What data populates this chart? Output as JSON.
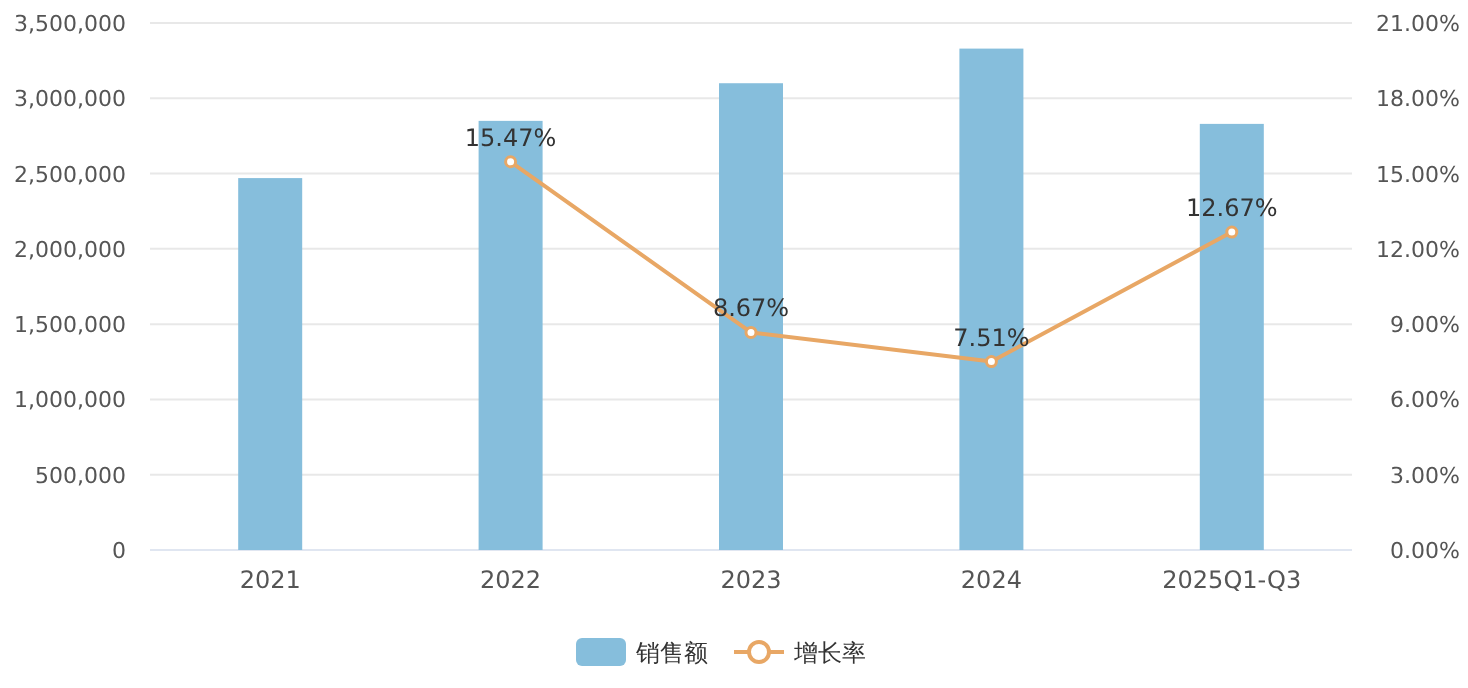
{
  "chart_data": {
    "type": "bar",
    "categories": [
      "2021",
      "2022",
      "2023",
      "2024",
      "2025Q1-Q3"
    ],
    "series": [
      {
        "name": "销售额",
        "color": "#86bedc",
        "values": [
          2470000,
          2850000,
          3100000,
          3330000,
          2830000
        ]
      },
      {
        "name": "增长率",
        "type": "line",
        "axis": "y2",
        "color": "#e8a765",
        "marker": "circle",
        "values": [
          null,
          15.47,
          8.67,
          7.51,
          12.67
        ],
        "value_labels": [
          null,
          "15.47%",
          "8.67%",
          "7.51%",
          "12.67%"
        ]
      }
    ],
    "ylim": [
      0,
      3500000
    ],
    "yticks": [
      {
        "value": 0,
        "label": "0"
      },
      {
        "value": 500000,
        "label": "500,000"
      },
      {
        "value": 1000000,
        "label": "1,000,000"
      },
      {
        "value": 1500000,
        "label": "1,500,000"
      },
      {
        "value": 2000000,
        "label": "2,000,000"
      },
      {
        "value": 2500000,
        "label": "2,500,000"
      },
      {
        "value": 3000000,
        "label": "3,000,000"
      },
      {
        "value": 3500000,
        "label": "3,500,000"
      }
    ],
    "y2lim": [
      0,
      21
    ],
    "y2ticks": [
      {
        "value": 0,
        "label": "0.00%"
      },
      {
        "value": 3,
        "label": "3.00%"
      },
      {
        "value": 6,
        "label": "6.00%"
      },
      {
        "value": 9,
        "label": "9.00%"
      },
      {
        "value": 12,
        "label": "12.00%"
      },
      {
        "value": 15,
        "label": "15.00%"
      },
      {
        "value": 18,
        "label": "18.00%"
      },
      {
        "value": 21,
        "label": "21.00%"
      }
    ],
    "grid": "y",
    "legend": "bottom"
  }
}
